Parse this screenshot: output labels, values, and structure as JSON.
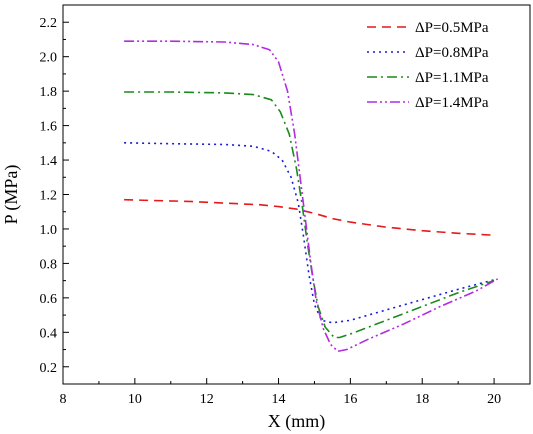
{
  "chart_data": {
    "type": "line",
    "xlabel": "X (mm)",
    "ylabel": "P (MPa)",
    "xlim": [
      8,
      21
    ],
    "ylim": [
      0.1,
      2.3
    ],
    "xticks": [
      8,
      10,
      12,
      14,
      16,
      18,
      20
    ],
    "xtick_labels": [
      "8",
      "10",
      "12",
      "14",
      "16",
      "18",
      "20"
    ],
    "yticks": [
      0.2,
      0.4,
      0.6,
      0.8,
      1.0,
      1.2,
      1.4,
      1.6,
      1.8,
      2.0,
      2.2
    ],
    "ytick_labels": [
      "0.2",
      "0.4",
      "0.6",
      "0.8",
      "1.0",
      "1.2",
      "1.4",
      "1.6",
      "1.8",
      "2.0",
      "2.2"
    ],
    "grid": false,
    "legend_position": "top-right",
    "series": [
      {
        "name": "ΔP=0.5MPa",
        "color": "#e41a1c",
        "dash": "dashed",
        "x": [
          9.7,
          10.5,
          11.5,
          12.5,
          13.5,
          14.0,
          14.5,
          14.8,
          15.0,
          15.5,
          16.0,
          17.0,
          18.0,
          19.0,
          19.9
        ],
        "y": [
          1.17,
          1.165,
          1.16,
          1.15,
          1.14,
          1.13,
          1.115,
          1.1,
          1.09,
          1.06,
          1.04,
          1.01,
          0.99,
          0.975,
          0.965
        ]
      },
      {
        "name": "ΔP=0.8MPa",
        "color": "#1a1ad8",
        "dash": "dotted",
        "x": [
          9.7,
          11.0,
          12.5,
          13.3,
          13.8,
          14.1,
          14.35,
          14.55,
          14.7,
          14.85,
          15.0,
          15.2,
          15.5,
          16.0,
          17.0,
          18.0,
          19.0,
          20.0
        ],
        "y": [
          1.5,
          1.495,
          1.49,
          1.48,
          1.45,
          1.4,
          1.3,
          1.15,
          0.95,
          0.73,
          0.56,
          0.47,
          0.455,
          0.47,
          0.53,
          0.59,
          0.65,
          0.705
        ]
      },
      {
        "name": "ΔP=1.1MPa",
        "color": "#1a8a1a",
        "dash": "dashdot",
        "x": [
          9.7,
          11.0,
          12.5,
          13.3,
          13.8,
          14.05,
          14.3,
          14.5,
          14.65,
          14.8,
          14.95,
          15.1,
          15.3,
          15.55,
          15.7,
          16.0,
          17.0,
          18.0,
          19.0,
          20.0
        ],
        "y": [
          1.795,
          1.795,
          1.79,
          1.78,
          1.75,
          1.68,
          1.55,
          1.35,
          1.15,
          0.92,
          0.72,
          0.55,
          0.43,
          0.37,
          0.37,
          0.39,
          0.47,
          0.55,
          0.63,
          0.7
        ]
      },
      {
        "name": "ΔP=1.4MPa",
        "color": "#b22be0",
        "dash": "dashdotdot",
        "x": [
          9.7,
          11.0,
          12.5,
          13.3,
          13.75,
          14.0,
          14.25,
          14.45,
          14.6,
          14.75,
          14.9,
          15.05,
          15.25,
          15.45,
          15.65,
          15.9,
          16.5,
          17.5,
          18.5,
          19.5,
          20.1
        ],
        "y": [
          2.09,
          2.09,
          2.085,
          2.07,
          2.04,
          1.97,
          1.8,
          1.55,
          1.3,
          1.05,
          0.8,
          0.58,
          0.42,
          0.33,
          0.29,
          0.3,
          0.36,
          0.45,
          0.55,
          0.64,
          0.71
        ]
      }
    ]
  }
}
